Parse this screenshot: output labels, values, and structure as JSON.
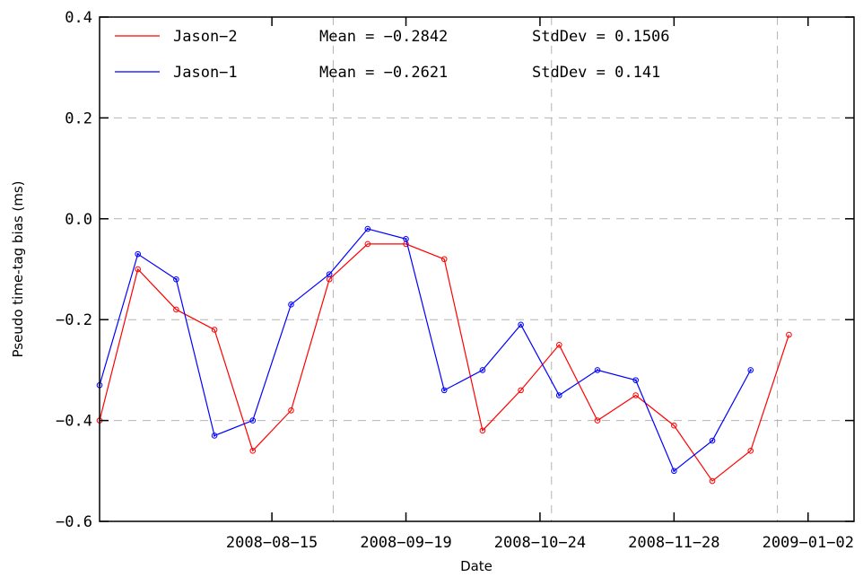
{
  "chart_data": {
    "type": "line",
    "xlabel": "Date",
    "ylabel": "Pseudo time-tag bias (ms)",
    "ylim": [
      -0.6,
      0.4
    ],
    "xlim": [
      "2008-07-01",
      "2009-01-14"
    ],
    "yticks": [
      0.4,
      0.2,
      0.0,
      -0.2,
      -0.4,
      -0.6
    ],
    "ytick_labels": [
      "0.4",
      "0.2",
      "0.0",
      "−0.2",
      "−0.4",
      "−0.6"
    ],
    "xticks": [
      "2008-08-15",
      "2008-09-19",
      "2008-10-24",
      "2008-11-28",
      "2009-01-02"
    ],
    "xtick_labels": [
      "2008−08−15",
      "2008−09−19",
      "2008−10−24",
      "2008−11−28",
      "2009−01−02"
    ],
    "vlines": [
      "2008-08-31",
      "2008-10-27",
      "2008-12-25"
    ],
    "grid": true,
    "legend_placement": "top-left",
    "series": [
      {
        "name": "Jason−2",
        "color": "#ff0000",
        "mean_label": "Mean = −0.2842",
        "std_label": "StdDev = 0.1506",
        "x": [
          "2008-07-01",
          "2008-07-11",
          "2008-07-21",
          "2008-07-31",
          "2008-08-10",
          "2008-08-20",
          "2008-08-30",
          "2008-09-09",
          "2008-09-19",
          "2008-09-29",
          "2008-10-09",
          "2008-10-19",
          "2008-10-29",
          "2008-11-08",
          "2008-11-18",
          "2008-11-28",
          "2008-12-08",
          "2008-12-18",
          "2008-12-28",
          "2009-01-07",
          "2009-01-17"
        ],
        "values": [
          -0.4,
          -0.1,
          -0.18,
          -0.22,
          -0.46,
          -0.38,
          -0.12,
          -0.05,
          -0.05,
          -0.08,
          -0.42,
          -0.34,
          -0.25,
          -0.4,
          -0.35,
          -0.41,
          -0.52,
          -0.46,
          -0.23,
          null,
          null
        ]
      },
      {
        "name": "Jason−1",
        "color": "#0000ff",
        "mean_label": "Mean = −0.2621",
        "std_label": "StdDev = 0.141",
        "x": [
          "2008-07-01",
          "2008-07-11",
          "2008-07-21",
          "2008-07-31",
          "2008-08-10",
          "2008-08-20",
          "2008-08-30",
          "2008-09-09",
          "2008-09-19",
          "2008-09-29",
          "2008-10-09",
          "2008-10-19",
          "2008-10-29",
          "2008-11-08",
          "2008-11-18",
          "2008-11-28",
          "2008-12-08",
          "2008-12-18",
          "2008-12-28",
          "2009-01-07",
          "2009-01-17"
        ],
        "values": [
          -0.33,
          -0.07,
          -0.12,
          -0.43,
          -0.4,
          -0.17,
          -0.11,
          -0.02,
          -0.04,
          -0.34,
          -0.3,
          -0.21,
          -0.35,
          -0.3,
          -0.32,
          -0.5,
          -0.44,
          -0.3,
          null,
          null,
          null
        ]
      }
    ]
  }
}
